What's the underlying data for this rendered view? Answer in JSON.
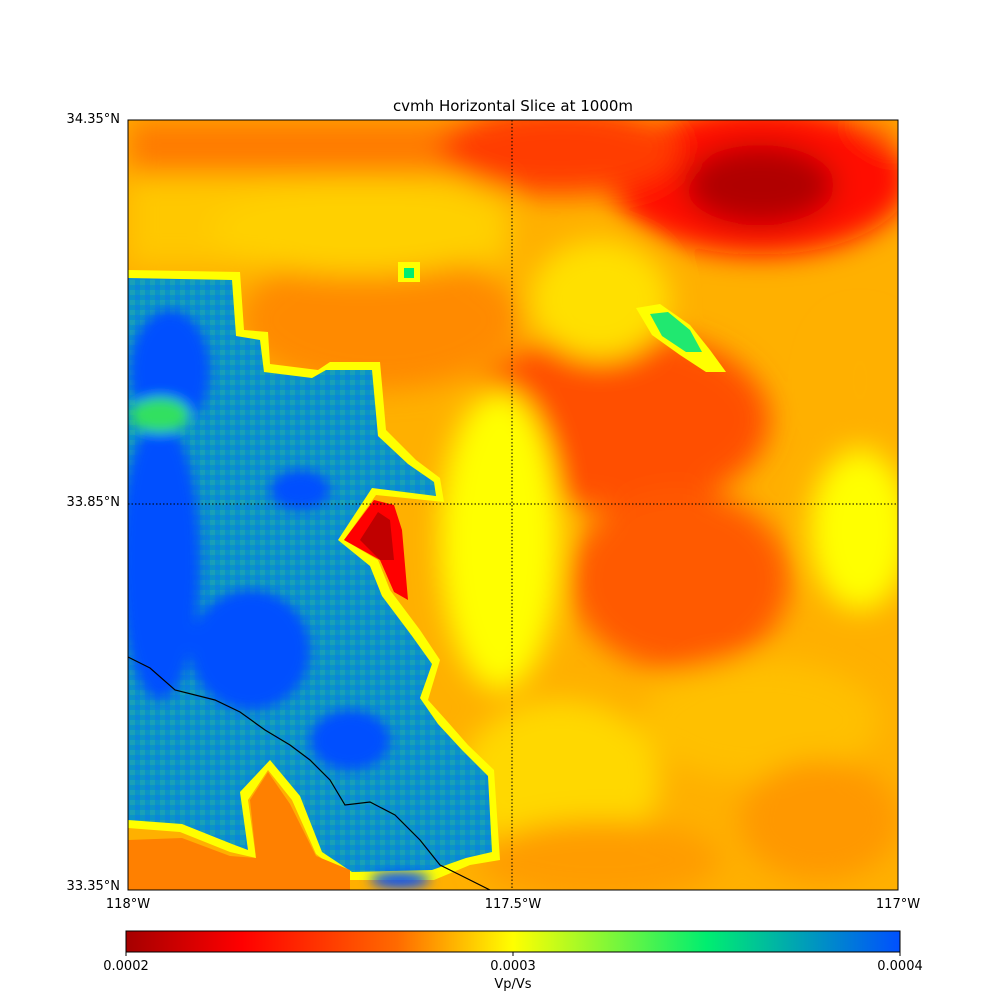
{
  "chart_data": {
    "type": "heatmap",
    "title": "cvmh Horizontal Slice at 1000m",
    "lat_ticks": [
      "34.35°N",
      "33.85°N",
      "33.35°N"
    ],
    "lon_ticks": [
      "118°W",
      "117.5°W",
      "117°W"
    ],
    "lon_range": [
      -118.0,
      -117.0
    ],
    "lat_range": [
      33.35,
      34.35
    ],
    "grid": "dotted lines at 117.5°W and 33.85°N",
    "colorbar": {
      "label": "Vp/Vs",
      "ticks": [
        "0.0002",
        "0.0003",
        "0.0004"
      ],
      "range": [
        0.0002,
        0.0004
      ],
      "colormap": [
        "#a50000",
        "#ff0000",
        "#ff8000",
        "#ffff00",
        "#00ee70",
        "#0050ff"
      ],
      "position": "bottom"
    },
    "features": {
      "low_value_hotspot": "north-east, near 117.15°W 34.25°N",
      "basin_region": "western half, values ~0.00036–0.0004",
      "coastline": "south-west corner"
    }
  }
}
